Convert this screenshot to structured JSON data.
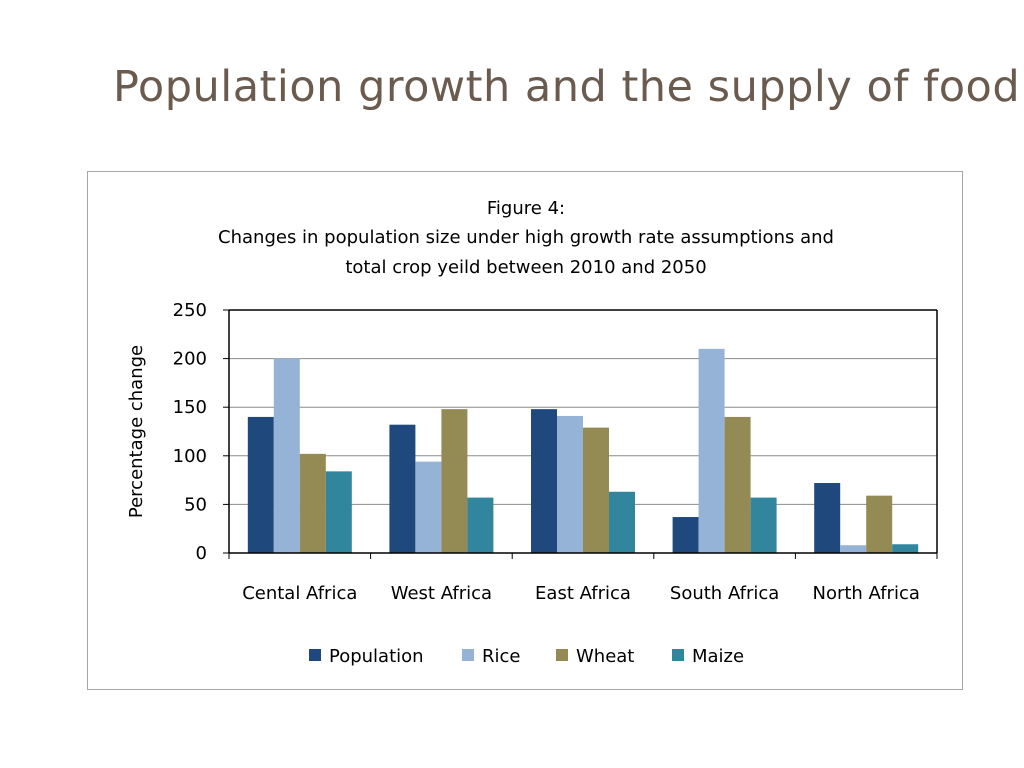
{
  "slide": {
    "title": "Population growth and the supply of food"
  },
  "chart_data": {
    "type": "bar",
    "title_lines": [
      "Figure 4:",
      "Changes in population size under high growth rate assumptions and",
      "total crop yeild between 2010 and 2050"
    ],
    "xlabel": "",
    "ylabel": "Percentage change",
    "ylim": [
      0,
      250
    ],
    "yticks": [
      0,
      50,
      100,
      150,
      200,
      250
    ],
    "grid": true,
    "legend_position": "bottom",
    "categories": [
      "Cental Africa",
      "West Africa",
      "East Africa",
      "South Africa",
      "North Africa"
    ],
    "series": [
      {
        "name": "Population",
        "color": "#1f497d",
        "values": [
          140,
          132,
          148,
          37,
          72
        ]
      },
      {
        "name": "Rice",
        "color": "#95b3d7",
        "values": [
          200,
          94,
          141,
          210,
          8
        ]
      },
      {
        "name": "Wheat",
        "color": "#948a54",
        "values": [
          102,
          148,
          129,
          140,
          59
        ]
      },
      {
        "name": "Maize",
        "color": "#31859c",
        "values": [
          84,
          57,
          63,
          57,
          9
        ]
      }
    ]
  }
}
